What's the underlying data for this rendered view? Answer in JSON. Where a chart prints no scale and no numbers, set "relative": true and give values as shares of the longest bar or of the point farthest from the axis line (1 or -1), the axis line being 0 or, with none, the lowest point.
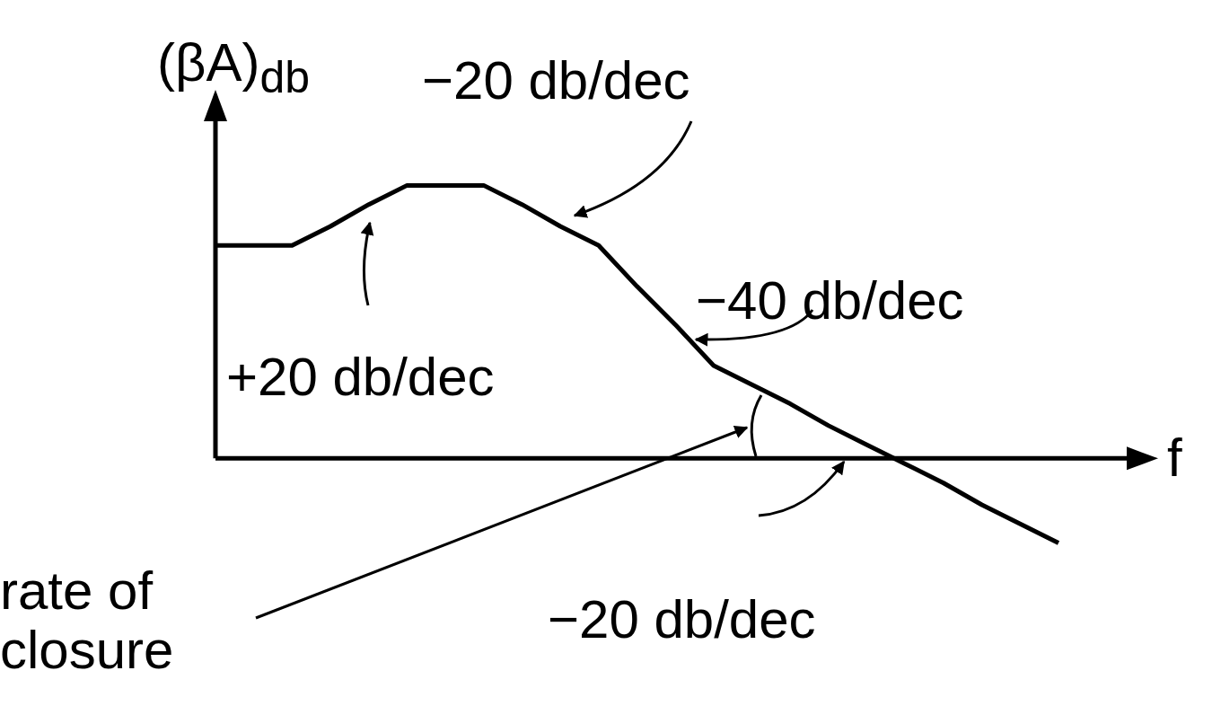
{
  "chart_data": {
    "type": "line",
    "relative": true,
    "xlabel": "f",
    "ylabel": "(βA)$_{db}$",
    "categories": [
      null,
      null,
      null,
      null,
      null,
      null,
      null,
      null,
      null,
      null,
      null,
      null,
      null,
      null,
      null,
      null,
      null,
      null,
      null,
      null,
      null,
      null,
      null
    ],
    "series": [
      {
        "color": "#000000",
        "values": [
          0.78,
          0.78,
          0.78,
          0.85,
          0.93,
          1.0,
          1.0,
          1.0,
          0.93,
          0.85,
          0.78,
          0.63,
          0.49,
          0.34,
          0.27,
          0.2,
          0.12,
          0.05,
          -0.02,
          -0.09,
          -0.17,
          -0.24,
          -0.31
        ]
      }
    ],
    "annotations": [
      "−20 db/dec",
      "−40 db/dec",
      "+20 db/dec",
      "rate of closure",
      "−20 db/dec"
    ],
    "marker": "none",
    "line_style": "solid",
    "grid": false
  }
}
